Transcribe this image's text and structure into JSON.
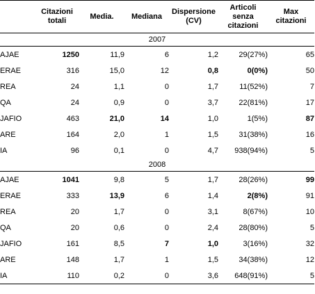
{
  "headers": {
    "label": "",
    "total": "Citazioni totali",
    "mean": "Media.",
    "median": "Mediana",
    "cv": "Dispersione (CV)",
    "uncited": "Articoli senza citazioni",
    "max": "Max citazioni"
  },
  "sections": [
    {
      "year": "2007",
      "rows": [
        {
          "journal": "AJAE",
          "total": "1250",
          "mean": "11,9",
          "median": "6",
          "cv": "1,2",
          "uncited": "29(27%)",
          "max": "65",
          "bold": [
            "total"
          ]
        },
        {
          "journal": "ERAE",
          "total": "316",
          "mean": "15,0",
          "median": "12",
          "cv": "0,8",
          "uncited": "0(0%)",
          "max": "50",
          "bold": [
            "cv",
            "uncited"
          ]
        },
        {
          "journal": "REA",
          "total": "24",
          "mean": "1,1",
          "median": "0",
          "cv": "1,7",
          "uncited": "11(52%)",
          "max": "7",
          "bold": []
        },
        {
          "journal": "QA",
          "total": "24",
          "mean": "0,9",
          "median": "0",
          "cv": "3,7",
          "uncited": "22(81%)",
          "max": "17",
          "bold": []
        },
        {
          "journal": "JAFIO",
          "total": "463",
          "mean": "21,0",
          "median": "14",
          "cv": "1,0",
          "uncited": "1(5%)",
          "max": "87",
          "bold": [
            "mean",
            "median",
            "max"
          ]
        },
        {
          "journal": "ARE",
          "total": "164",
          "mean": "2,0",
          "median": "1",
          "cv": "1,5",
          "uncited": "31(38%)",
          "max": "16",
          "bold": []
        },
        {
          "journal": "IA",
          "total": "96",
          "mean": "0,1",
          "median": "0",
          "cv": "4,7",
          "uncited": "938(94%)",
          "max": "5",
          "bold": []
        }
      ]
    },
    {
      "year": "2008",
      "rows": [
        {
          "journal": "AJAE",
          "total": "1041",
          "mean": "9,8",
          "median": "5",
          "cv": "1,7",
          "uncited": "28(26%)",
          "max": "99",
          "bold": [
            "total",
            "max"
          ]
        },
        {
          "journal": "ERAE",
          "total": "333",
          "mean": "13,9",
          "median": "6",
          "cv": "1,4",
          "uncited": "2(8%)",
          "max": "91",
          "bold": [
            "mean",
            "uncited"
          ]
        },
        {
          "journal": "REA",
          "total": "20",
          "mean": "1,7",
          "median": "0",
          "cv": "3,1",
          "uncited": "8(67%)",
          "max": "10",
          "bold": []
        },
        {
          "journal": "QA",
          "total": "20",
          "mean": "0,6",
          "median": "0",
          "cv": "2,4",
          "uncited": "28(80%)",
          "max": "5",
          "bold": []
        },
        {
          "journal": "JAFIO",
          "total": "161",
          "mean": "8,5",
          "median": "7",
          "cv": "1,0",
          "uncited": "3(16%)",
          "max": "32",
          "bold": [
            "median",
            "cv"
          ]
        },
        {
          "journal": "ARE",
          "total": "148",
          "mean": "1,7",
          "median": "1",
          "cv": "1,5",
          "uncited": "34(38%)",
          "max": "12",
          "bold": []
        },
        {
          "journal": "IA",
          "total": "110",
          "mean": "0,2",
          "median": "0",
          "cv": "3,6",
          "uncited": "648(91%)",
          "max": "5",
          "bold": []
        }
      ]
    }
  ]
}
